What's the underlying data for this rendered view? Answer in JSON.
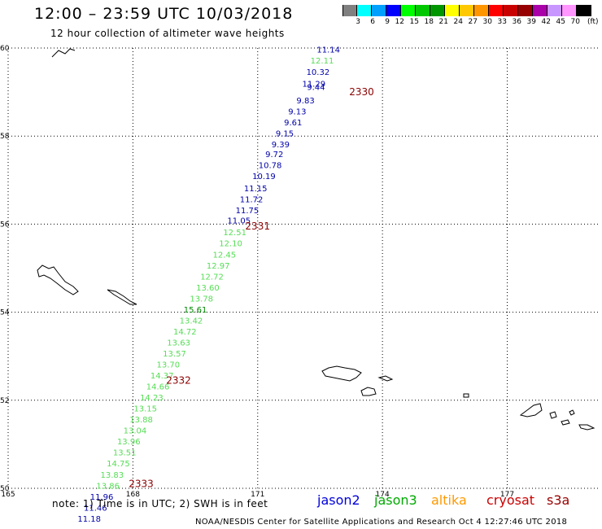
{
  "header": {
    "title": "12:00 – 23:59 UTC 10/03/2018",
    "subtitle": "12 hour collection of altimeter wave heights"
  },
  "colorbar": {
    "colors": [
      "#808080",
      "#00ffff",
      "#00a0ff",
      "#0000ff",
      "#00ff00",
      "#00c800",
      "#009600",
      "#ffff00",
      "#ffc800",
      "#ff9600",
      "#ff0000",
      "#c80000",
      "#960000",
      "#aa00aa",
      "#c896ff",
      "#ff96ff",
      "#000000"
    ],
    "labels": [
      "3",
      "6",
      "9",
      "12",
      "15",
      "18",
      "21",
      "24",
      "27",
      "30",
      "33",
      "36",
      "39",
      "42",
      "45",
      "70"
    ],
    "unit": "(ft)"
  },
  "map": {
    "lat_labels": [
      "60",
      "58",
      "56",
      "54",
      "52",
      "50"
    ],
    "lon_labels": [
      "165",
      "168",
      "171",
      "174",
      "177"
    ],
    "lat_range": [
      50,
      60
    ],
    "lon_range": [
      165,
      179.2
    ],
    "pass_labels": [
      {
        "text": "2330",
        "lon": 173.2,
        "lat": 59.0
      },
      {
        "text": "2331",
        "lon": 170.7,
        "lat": 55.95
      },
      {
        "text": "2332",
        "lon": 168.8,
        "lat": 52.45
      },
      {
        "text": "2333",
        "lon": 167.9,
        "lat": 50.1
      }
    ],
    "observations": [
      {
        "v": "11.14",
        "lon": 172.7,
        "lat": 59.95,
        "sat": "jason2"
      },
      {
        "v": "12.11",
        "lon": 172.55,
        "lat": 59.7,
        "sat": "jason3"
      },
      {
        "v": "10.32",
        "lon": 172.45,
        "lat": 59.45,
        "sat": "jason2"
      },
      {
        "v": "11.29",
        "lon": 172.35,
        "lat": 59.18,
        "sat": "jason2"
      },
      {
        "v": "9.44",
        "lon": 172.4,
        "lat": 59.1,
        "sat": "jason2"
      },
      {
        "v": "9.83",
        "lon": 172.15,
        "lat": 58.8,
        "sat": "jason2"
      },
      {
        "v": "9.13",
        "lon": 171.95,
        "lat": 58.55,
        "sat": "jason2"
      },
      {
        "v": "9.61",
        "lon": 171.85,
        "lat": 58.3,
        "sat": "jason2"
      },
      {
        "v": "9.15",
        "lon": 171.65,
        "lat": 58.05,
        "sat": "jason2"
      },
      {
        "v": "9.39",
        "lon": 171.55,
        "lat": 57.8,
        "sat": "jason2"
      },
      {
        "v": "9.72",
        "lon": 171.4,
        "lat": 57.58,
        "sat": "jason2"
      },
      {
        "v": "10.78",
        "lon": 171.3,
        "lat": 57.33,
        "sat": "jason2"
      },
      {
        "v": "10.19",
        "lon": 171.15,
        "lat": 57.08,
        "sat": "jason2"
      },
      {
        "v": "11.15",
        "lon": 170.95,
        "lat": 56.8,
        "sat": "jason2"
      },
      {
        "v": "11.72",
        "lon": 170.85,
        "lat": 56.55,
        "sat": "jason2"
      },
      {
        "v": "11.75",
        "lon": 170.75,
        "lat": 56.3,
        "sat": "jason2"
      },
      {
        "v": "11.05",
        "lon": 170.55,
        "lat": 56.07,
        "sat": "jason2"
      },
      {
        "v": "12.51",
        "lon": 170.45,
        "lat": 55.8,
        "sat": "jason3"
      },
      {
        "v": "12.10",
        "lon": 170.35,
        "lat": 55.55,
        "sat": "jason3"
      },
      {
        "v": "12.45",
        "lon": 170.2,
        "lat": 55.3,
        "sat": "jason3"
      },
      {
        "v": "12.97",
        "lon": 170.05,
        "lat": 55.05,
        "sat": "jason3"
      },
      {
        "v": "12.72",
        "lon": 169.9,
        "lat": 54.8,
        "sat": "jason3"
      },
      {
        "v": "13.60",
        "lon": 169.8,
        "lat": 54.55,
        "sat": "jason3"
      },
      {
        "v": "13.78",
        "lon": 169.65,
        "lat": 54.3,
        "sat": "jason3"
      },
      {
        "v": "15.61",
        "lon": 169.5,
        "lat": 54.05,
        "sat": "jason3_dark"
      },
      {
        "v": "13.42",
        "lon": 169.4,
        "lat": 53.8,
        "sat": "jason3"
      },
      {
        "v": "14.72",
        "lon": 169.25,
        "lat": 53.55,
        "sat": "jason3"
      },
      {
        "v": "13.63",
        "lon": 169.1,
        "lat": 53.3,
        "sat": "jason3"
      },
      {
        "v": "13.57",
        "lon": 169.0,
        "lat": 53.05,
        "sat": "jason3"
      },
      {
        "v": "13.70",
        "lon": 168.85,
        "lat": 52.8,
        "sat": "jason3"
      },
      {
        "v": "14.37",
        "lon": 168.7,
        "lat": 52.55,
        "sat": "jason3"
      },
      {
        "v": "14.66",
        "lon": 168.6,
        "lat": 52.3,
        "sat": "jason3"
      },
      {
        "v": "14.23",
        "lon": 168.45,
        "lat": 52.05,
        "sat": "jason3"
      },
      {
        "v": "13.15",
        "lon": 168.3,
        "lat": 51.8,
        "sat": "jason3"
      },
      {
        "v": "13.88",
        "lon": 168.2,
        "lat": 51.55,
        "sat": "jason3"
      },
      {
        "v": "13.04",
        "lon": 168.05,
        "lat": 51.3,
        "sat": "jason3"
      },
      {
        "v": "13.96",
        "lon": 167.9,
        "lat": 51.05,
        "sat": "jason3"
      },
      {
        "v": "13.51",
        "lon": 167.8,
        "lat": 50.8,
        "sat": "jason3"
      },
      {
        "v": "14.75",
        "lon": 167.65,
        "lat": 50.55,
        "sat": "jason3"
      },
      {
        "v": "13.83",
        "lon": 167.5,
        "lat": 50.3,
        "sat": "jason3"
      },
      {
        "v": "13.86",
        "lon": 167.4,
        "lat": 50.05,
        "sat": "jason3"
      },
      {
        "v": "11.96",
        "lon": 167.25,
        "lat": 49.8,
        "sat": "jason2"
      },
      {
        "v": "11.46",
        "lon": 167.1,
        "lat": 49.55,
        "sat": "jason2"
      },
      {
        "v": "11.18",
        "lon": 166.95,
        "lat": 49.3,
        "sat": "jason2"
      }
    ]
  },
  "footer": {
    "note": "note:  1) Time is in UTC;  2) SWH is in feet",
    "legend": [
      {
        "label": "jason2",
        "color": "#0000dd"
      },
      {
        "label": "jason3",
        "color": "#00aa00"
      },
      {
        "label": "altika",
        "color": "#ff9900"
      },
      {
        "label": "cryosat",
        "color": "#cc0000"
      },
      {
        "label": "s3a",
        "color": "#990000"
      }
    ],
    "credit": "NOAA/NESDIS Center for Satellite Applications and Research    Oct  4 12:27:46 UTC 2018"
  }
}
